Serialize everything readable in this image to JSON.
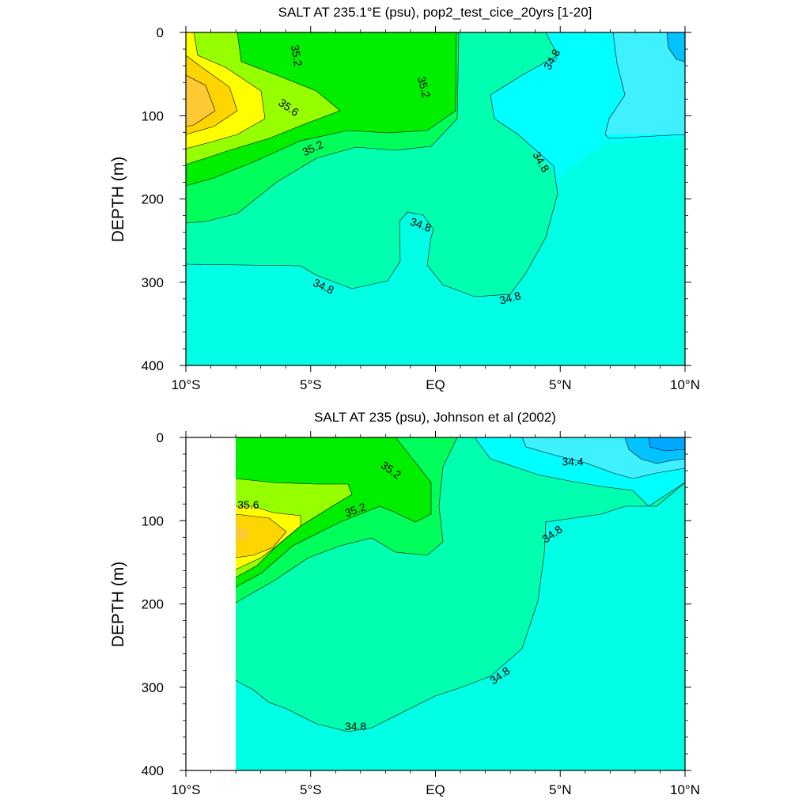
{
  "figure": {
    "shared_x_ticks": [
      {
        "value": -10,
        "label": "10°S"
      },
      {
        "value": -5,
        "label": "5°S"
      },
      {
        "value": 0,
        "label": "EQ"
      },
      {
        "value": 5,
        "label": "5°N"
      },
      {
        "value": 10,
        "label": "10°N"
      }
    ],
    "shared_y_ticks": [
      0,
      100,
      200,
      300,
      400
    ]
  },
  "chart_data": [
    {
      "type": "heatmap",
      "title": "SALT AT 235.1°E (psu), pop2_test_cice_20yrs [1-20]",
      "xlabel": "",
      "ylabel": "DEPTH (m)",
      "xlim": [
        -10,
        10
      ],
      "ylim": [
        400,
        0
      ],
      "x_tick_labels": [
        "10°S",
        "5°S",
        "EQ",
        "5°N",
        "10°N"
      ],
      "y_tick_labels": [
        "0",
        "100",
        "200",
        "300",
        "400"
      ],
      "data_extent_x": [
        -10,
        10
      ],
      "colors": {
        "34.2-34.4": "#00c3ff",
        "34.4-34.6": "#3ff0ff",
        "34.6-34.8": "#00ffff",
        "34.8-35.0 (deep)": "#00ffe4",
        "34.8-35.0": "#00ffae",
        "35.0-35.2": "#00ff5a",
        "35.2-35.4": "#00ee00",
        "35.4-35.6": "#96ff00",
        "35.6-35.8": "#ffff00",
        "35.8-36.0": "#ffd500",
        "36.0-36.2": "#ffc936"
      },
      "contour_labels": [
        {
          "text": "35.2",
          "x": -5.6,
          "y": 28,
          "rot": 80
        },
        {
          "text": "35.6",
          "x": -5.9,
          "y": 91,
          "rot": 35
        },
        {
          "text": "35.2",
          "x": -4.9,
          "y": 140,
          "rot": -25
        },
        {
          "text": "35.2",
          "x": -0.5,
          "y": 66,
          "rot": 75
        },
        {
          "text": "34.8",
          "x": 4.7,
          "y": 33,
          "rot": -60
        },
        {
          "text": "34.8",
          "x": 4.2,
          "y": 156,
          "rot": 60
        },
        {
          "text": "34.8",
          "x": -0.6,
          "y": 232,
          "rot": 20
        },
        {
          "text": "34.8",
          "x": -4.5,
          "y": 306,
          "rot": 25
        },
        {
          "text": "34.8",
          "x": 3.0,
          "y": 320,
          "rot": -15
        }
      ]
    },
    {
      "type": "heatmap",
      "title": "SALT AT 235 (psu), Johnson et al (2002)",
      "xlabel": "",
      "ylabel": "DEPTH (m)",
      "xlim": [
        -10,
        10
      ],
      "ylim": [
        400,
        0
      ],
      "x_tick_labels": [
        "10°S",
        "5°S",
        "EQ",
        "5°N",
        "10°N"
      ],
      "y_tick_labels": [
        "0",
        "100",
        "200",
        "300",
        "400"
      ],
      "data_extent_x": [
        -8,
        10
      ],
      "colors": {
        "34.2-34.4": "#00c3ff",
        "34.4-34.6": "#3ff0ff",
        "34.6-34.8": "#00ffff",
        "34.8-35.0 (deep)": "#00ffe4",
        "34.8-35.0": "#00ffae",
        "35.0-35.2": "#00ff5a",
        "35.2-35.4": "#00ee00",
        "35.4-35.6": "#96ff00",
        "35.6-35.8": "#ffff00",
        "35.8-36.0": "#ffd500",
        "36.0-36.2": "#ffc936"
      },
      "contour_labels": [
        {
          "text": "35.2",
          "x": -1.8,
          "y": 40,
          "rot": 35
        },
        {
          "text": "35.6",
          "x": -7.5,
          "y": 82,
          "rot": 0
        },
        {
          "text": "35.2",
          "x": -3.2,
          "y": 88,
          "rot": -20
        },
        {
          "text": "34.4",
          "x": 5.5,
          "y": 30,
          "rot": 0
        },
        {
          "text": "34.8",
          "x": 4.7,
          "y": 117,
          "rot": -35
        },
        {
          "text": "34.8",
          "x": 2.6,
          "y": 287,
          "rot": -35
        },
        {
          "text": "34.8",
          "x": -3.2,
          "y": 348,
          "rot": 0
        }
      ]
    }
  ]
}
